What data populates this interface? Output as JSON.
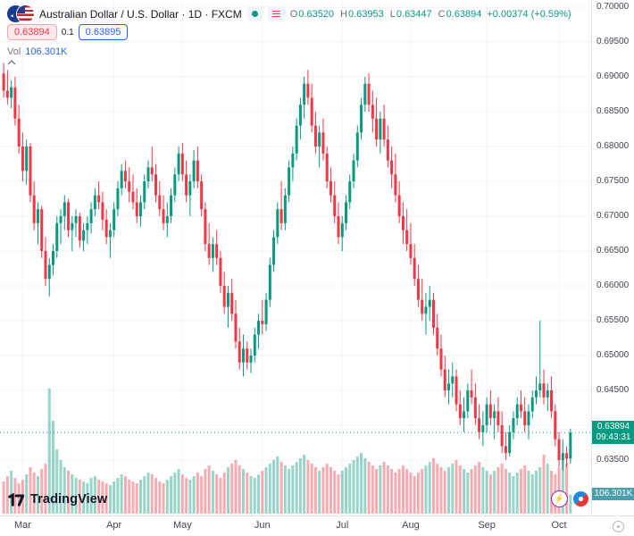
{
  "header": {
    "symbol_title": "Australian Dollar / U.S. Dollar · 1D · FXCM",
    "ohlc": {
      "o_label": "O",
      "o": "0.63520",
      "h_label": "H",
      "h": "0.63953",
      "l_label": "L",
      "l": "0.63447",
      "c_label": "C",
      "c": "0.63894",
      "change": "+0.00374 (+0.59%)"
    },
    "sell_price": "0.63894",
    "spread": "0.1",
    "buy_price": "0.63895",
    "vol_label": "Vol",
    "vol_value": "106.301K"
  },
  "price_label": {
    "price": "0.63894",
    "countdown": "09:43:31"
  },
  "volume_label": "106.301K",
  "price_scale": {
    "labels": [
      "0.70000",
      "0.69500",
      "0.69000",
      "0.68500",
      "0.68000",
      "0.67500",
      "0.67000",
      "0.66500",
      "0.66000",
      "0.65500",
      "0.65000",
      "0.64500",
      "0.64000",
      "0.63500"
    ]
  },
  "footer": {
    "logo_text": "TradingView"
  },
  "colors": {
    "up": "#089981",
    "down": "#f23645",
    "vol_up": "rgba(8,153,129,0.42)",
    "vol_down": "rgba(242,54,69,0.42)",
    "grid": "#f0f3fa",
    "accent_blue": "#2962ff",
    "axis_text": "#434651",
    "price_label_bg": "#089981",
    "vol_label_bg": "#4a9fae"
  },
  "icons": {
    "market_status": "green-dot",
    "symbol_details": "red-bars",
    "collapse": "chevron-up",
    "quick1": "lightning",
    "quick2": "red-blue-target",
    "corner": "dot-circle"
  },
  "chart_data": {
    "type": "candlestick_with_volume",
    "title": "Australian Dollar / U.S. Dollar, 1D, FXCM",
    "ylim": [
      0.635,
      0.7
    ],
    "volume_scale_max": 700,
    "volume_unit": "K",
    "x_axis_months": [
      "Mar",
      "Apr",
      "May",
      "Jun",
      "Jul",
      "Aug",
      "Sep",
      "Oct"
    ],
    "month_tick_indices": [
      5,
      29,
      47,
      68,
      89,
      107,
      127,
      146
    ],
    "last": {
      "open": 0.6352,
      "high": 0.63953,
      "low": 0.63447,
      "close": 0.63894,
      "change": "+0.00374",
      "change_pct": "+0.59%",
      "volume": "106.301K",
      "countdown": "09:43:31"
    },
    "candles": [
      [
        0.6905,
        0.692,
        0.687,
        0.688
      ],
      [
        0.688,
        0.691,
        0.686,
        0.687
      ],
      [
        0.687,
        0.6895,
        0.6855,
        0.6885
      ],
      [
        0.6885,
        0.69,
        0.683,
        0.684
      ],
      [
        0.684,
        0.686,
        0.679,
        0.68
      ],
      [
        0.68,
        0.682,
        0.675,
        0.6765
      ],
      [
        0.6765,
        0.681,
        0.6745,
        0.68
      ],
      [
        0.68,
        0.6805,
        0.672,
        0.673
      ],
      [
        0.673,
        0.675,
        0.668,
        0.669
      ],
      [
        0.669,
        0.672,
        0.666,
        0.671
      ],
      [
        0.671,
        0.6715,
        0.664,
        0.665
      ],
      [
        0.665,
        0.667,
        0.66,
        0.661
      ],
      [
        0.661,
        0.664,
        0.6585,
        0.663
      ],
      [
        0.663,
        0.666,
        0.6615,
        0.665
      ],
      [
        0.665,
        0.67,
        0.664,
        0.669
      ],
      [
        0.669,
        0.671,
        0.666,
        0.67
      ],
      [
        0.67,
        0.673,
        0.668,
        0.672
      ],
      [
        0.672,
        0.6725,
        0.667,
        0.668
      ],
      [
        0.668,
        0.67,
        0.665,
        0.669
      ],
      [
        0.669,
        0.671,
        0.667,
        0.67
      ],
      [
        0.67,
        0.6705,
        0.6655,
        0.6665
      ],
      [
        0.6665,
        0.669,
        0.665,
        0.668
      ],
      [
        0.668,
        0.67,
        0.666,
        0.669
      ],
      [
        0.669,
        0.672,
        0.6675,
        0.671
      ],
      [
        0.671,
        0.674,
        0.67,
        0.673
      ],
      [
        0.673,
        0.675,
        0.671,
        0.672
      ],
      [
        0.672,
        0.6735,
        0.668,
        0.6695
      ],
      [
        0.6695,
        0.671,
        0.666,
        0.667
      ],
      [
        0.667,
        0.669,
        0.664,
        0.668
      ],
      [
        0.668,
        0.672,
        0.667,
        0.671
      ],
      [
        0.671,
        0.675,
        0.67,
        0.674
      ],
      [
        0.674,
        0.6775,
        0.673,
        0.6765
      ],
      [
        0.6765,
        0.678,
        0.674,
        0.675
      ],
      [
        0.675,
        0.677,
        0.672,
        0.6735
      ],
      [
        0.6735,
        0.676,
        0.671,
        0.672
      ],
      [
        0.672,
        0.674,
        0.669,
        0.67
      ],
      [
        0.67,
        0.673,
        0.6685,
        0.672
      ],
      [
        0.672,
        0.676,
        0.671,
        0.675
      ],
      [
        0.675,
        0.678,
        0.674,
        0.677
      ],
      [
        0.677,
        0.68,
        0.675,
        0.676
      ],
      [
        0.676,
        0.6775,
        0.672,
        0.673
      ],
      [
        0.673,
        0.675,
        0.67,
        0.671
      ],
      [
        0.671,
        0.673,
        0.668,
        0.669
      ],
      [
        0.669,
        0.672,
        0.667,
        0.67
      ],
      [
        0.67,
        0.674,
        0.669,
        0.673
      ],
      [
        0.673,
        0.677,
        0.672,
        0.676
      ],
      [
        0.676,
        0.68,
        0.675,
        0.679
      ],
      [
        0.679,
        0.6805,
        0.675,
        0.676
      ],
      [
        0.676,
        0.678,
        0.672,
        0.673
      ],
      [
        0.673,
        0.676,
        0.67,
        0.675
      ],
      [
        0.675,
        0.6795,
        0.674,
        0.678
      ],
      [
        0.678,
        0.68,
        0.674,
        0.675
      ],
      [
        0.675,
        0.676,
        0.67,
        0.671
      ],
      [
        0.671,
        0.672,
        0.665,
        0.666
      ],
      [
        0.666,
        0.669,
        0.663,
        0.664
      ],
      [
        0.664,
        0.667,
        0.662,
        0.666
      ],
      [
        0.666,
        0.668,
        0.663,
        0.664
      ],
      [
        0.664,
        0.665,
        0.659,
        0.66
      ],
      [
        0.66,
        0.662,
        0.656,
        0.657
      ],
      [
        0.657,
        0.66,
        0.654,
        0.659
      ],
      [
        0.659,
        0.661,
        0.655,
        0.656
      ],
      [
        0.656,
        0.658,
        0.651,
        0.652
      ],
      [
        0.652,
        0.654,
        0.648,
        0.649
      ],
      [
        0.649,
        0.653,
        0.647,
        0.651
      ],
      [
        0.651,
        0.652,
        0.648,
        0.649
      ],
      [
        0.649,
        0.651,
        0.6475,
        0.65
      ],
      [
        0.65,
        0.654,
        0.649,
        0.653
      ],
      [
        0.653,
        0.656,
        0.651,
        0.655
      ],
      [
        0.655,
        0.658,
        0.653,
        0.6545
      ],
      [
        0.6545,
        0.659,
        0.6535,
        0.658
      ],
      [
        0.658,
        0.664,
        0.657,
        0.663
      ],
      [
        0.663,
        0.668,
        0.662,
        0.667
      ],
      [
        0.667,
        0.672,
        0.666,
        0.671
      ],
      [
        0.671,
        0.675,
        0.668,
        0.669
      ],
      [
        0.669,
        0.674,
        0.668,
        0.673
      ],
      [
        0.673,
        0.678,
        0.672,
        0.677
      ],
      [
        0.677,
        0.68,
        0.675,
        0.679
      ],
      [
        0.679,
        0.684,
        0.678,
        0.683
      ],
      [
        0.683,
        0.687,
        0.681,
        0.686
      ],
      [
        0.686,
        0.69,
        0.684,
        0.689
      ],
      [
        0.689,
        0.691,
        0.686,
        0.687
      ],
      [
        0.687,
        0.689,
        0.682,
        0.683
      ],
      [
        0.683,
        0.685,
        0.679,
        0.68
      ],
      [
        0.68,
        0.683,
        0.677,
        0.682
      ],
      [
        0.682,
        0.684,
        0.678,
        0.679
      ],
      [
        0.679,
        0.68,
        0.674,
        0.675
      ],
      [
        0.675,
        0.677,
        0.672,
        0.673
      ],
      [
        0.673,
        0.675,
        0.669,
        0.67
      ],
      [
        0.67,
        0.672,
        0.666,
        0.667
      ],
      [
        0.667,
        0.67,
        0.665,
        0.669
      ],
      [
        0.669,
        0.673,
        0.668,
        0.672
      ],
      [
        0.672,
        0.676,
        0.671,
        0.675
      ],
      [
        0.675,
        0.679,
        0.674,
        0.678
      ],
      [
        0.678,
        0.683,
        0.677,
        0.682
      ],
      [
        0.682,
        0.687,
        0.681,
        0.686
      ],
      [
        0.686,
        0.69,
        0.685,
        0.689
      ],
      [
        0.689,
        0.6905,
        0.685,
        0.686
      ],
      [
        0.686,
        0.688,
        0.682,
        0.684
      ],
      [
        0.684,
        0.687,
        0.68,
        0.681
      ],
      [
        0.681,
        0.685,
        0.679,
        0.684
      ],
      [
        0.684,
        0.686,
        0.68,
        0.681
      ],
      [
        0.681,
        0.683,
        0.677,
        0.678
      ],
      [
        0.678,
        0.68,
        0.674,
        0.676
      ],
      [
        0.676,
        0.679,
        0.672,
        0.673
      ],
      [
        0.673,
        0.675,
        0.669,
        0.67
      ],
      [
        0.67,
        0.672,
        0.666,
        0.668
      ],
      [
        0.668,
        0.671,
        0.665,
        0.666
      ],
      [
        0.666,
        0.669,
        0.663,
        0.664
      ],
      [
        0.664,
        0.666,
        0.66,
        0.661
      ],
      [
        0.661,
        0.663,
        0.657,
        0.658
      ],
      [
        0.658,
        0.661,
        0.655,
        0.656
      ],
      [
        0.656,
        0.659,
        0.653,
        0.657
      ],
      [
        0.657,
        0.66,
        0.655,
        0.658
      ],
      [
        0.658,
        0.659,
        0.653,
        0.654
      ],
      [
        0.654,
        0.656,
        0.65,
        0.651
      ],
      [
        0.651,
        0.653,
        0.647,
        0.648
      ],
      [
        0.648,
        0.65,
        0.644,
        0.645
      ],
      [
        0.645,
        0.648,
        0.643,
        0.646
      ],
      [
        0.646,
        0.649,
        0.644,
        0.647
      ],
      [
        0.647,
        0.648,
        0.642,
        0.643
      ],
      [
        0.643,
        0.645,
        0.64,
        0.641
      ],
      [
        0.641,
        0.644,
        0.639,
        0.642
      ],
      [
        0.642,
        0.646,
        0.641,
        0.645
      ],
      [
        0.645,
        0.648,
        0.643,
        0.644
      ],
      [
        0.644,
        0.646,
        0.64,
        0.641
      ],
      [
        0.641,
        0.643,
        0.638,
        0.639
      ],
      [
        0.639,
        0.642,
        0.637,
        0.64
      ],
      [
        0.64,
        0.644,
        0.639,
        0.643
      ],
      [
        0.643,
        0.645,
        0.64,
        0.641
      ],
      [
        0.641,
        0.643,
        0.638,
        0.642
      ],
      [
        0.642,
        0.644,
        0.639,
        0.64
      ],
      [
        0.64,
        0.642,
        0.636,
        0.637
      ],
      [
        0.637,
        0.639,
        0.635,
        0.636
      ],
      [
        0.636,
        0.64,
        0.6355,
        0.639
      ],
      [
        0.639,
        0.642,
        0.638,
        0.641
      ],
      [
        0.641,
        0.644,
        0.64,
        0.643
      ],
      [
        0.643,
        0.645,
        0.641,
        0.642
      ],
      [
        0.642,
        0.644,
        0.639,
        0.64
      ],
      [
        0.64,
        0.643,
        0.638,
        0.642
      ],
      [
        0.642,
        0.645,
        0.641,
        0.644
      ],
      [
        0.644,
        0.647,
        0.643,
        0.645
      ],
      [
        0.645,
        0.655,
        0.644,
        0.646
      ],
      [
        0.646,
        0.648,
        0.643,
        0.644
      ],
      [
        0.644,
        0.646,
        0.642,
        0.645
      ],
      [
        0.645,
        0.647,
        0.641,
        0.642
      ],
      [
        0.642,
        0.643,
        0.637,
        0.638
      ],
      [
        0.638,
        0.639,
        0.634,
        0.635
      ],
      [
        0.635,
        0.638,
        0.6335,
        0.636
      ],
      [
        0.636,
        0.637,
        0.634,
        0.6352
      ],
      [
        0.6352,
        0.63953,
        0.63447,
        0.63894
      ]
    ],
    "volumes": [
      180,
      210,
      240,
      200,
      170,
      190,
      220,
      260,
      230,
      210,
      250,
      280,
      700,
      520,
      360,
      300,
      260,
      240,
      220,
      200,
      190,
      180,
      170,
      200,
      210,
      190,
      180,
      170,
      160,
      180,
      200,
      220,
      210,
      190,
      180,
      170,
      190,
      210,
      230,
      220,
      200,
      180,
      170,
      190,
      210,
      230,
      250,
      220,
      200,
      190,
      210,
      230,
      210,
      250,
      270,
      240,
      220,
      200,
      230,
      260,
      280,
      300,
      270,
      250,
      230,
      210,
      200,
      220,
      240,
      260,
      280,
      300,
      320,
      290,
      270,
      250,
      270,
      290,
      310,
      330,
      300,
      280,
      260,
      240,
      260,
      280,
      260,
      240,
      220,
      240,
      260,
      280,
      300,
      320,
      340,
      310,
      290,
      270,
      250,
      270,
      290,
      270,
      250,
      230,
      250,
      270,
      250,
      230,
      210,
      230,
      250,
      270,
      290,
      310,
      280,
      260,
      240,
      260,
      280,
      300,
      270,
      250,
      230,
      250,
      270,
      290,
      260,
      240,
      220,
      240,
      260,
      280,
      250,
      230,
      210,
      230,
      250,
      270,
      240,
      220,
      240,
      260,
      330,
      280,
      240,
      220,
      260,
      300,
      280,
      106
    ]
  }
}
